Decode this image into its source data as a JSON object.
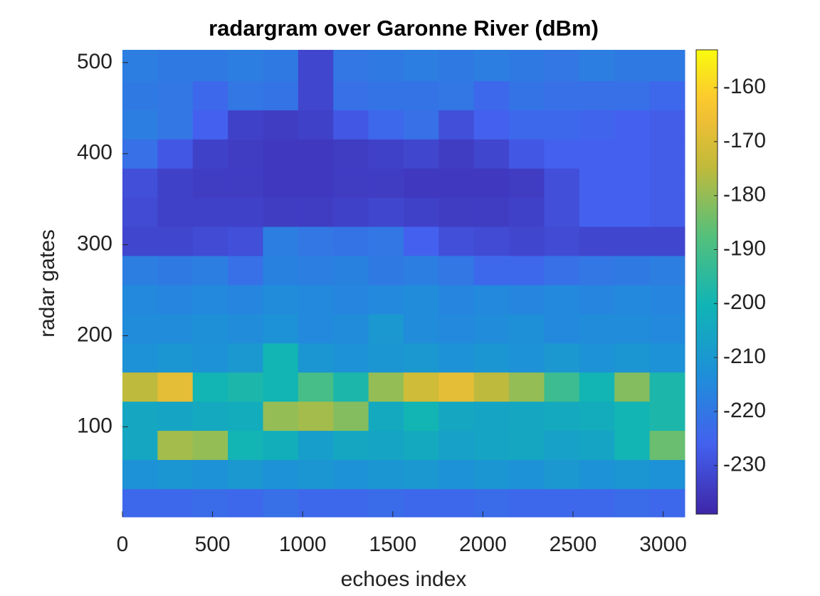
{
  "chart_data": {
    "type": "heatmap",
    "title": "radargram over Garonne River (dBm)",
    "x_label": "echoes index",
    "y_label": "radar gates",
    "xlim": [
      0,
      3120
    ],
    "xticks": [
      0,
      500,
      1000,
      1500,
      2000,
      2500,
      3000
    ],
    "ylim": [
      1,
      514
    ],
    "yticks": [
      100,
      200,
      300,
      400,
      500
    ],
    "clim": [
      -239,
      -153
    ],
    "cticks": [
      -160,
      -170,
      -180,
      -190,
      -200,
      -210,
      -220,
      -230
    ],
    "colormap": "parula",
    "x": [
      97.5,
      292.5,
      487.5,
      682.5,
      877.5,
      1072.5,
      1267.5,
      1462.5,
      1657.5,
      1852.5,
      2047.5,
      2242.5,
      2437.5,
      2632.5,
      2827.5,
      3022.5
    ],
    "y": [
      16,
      48,
      80,
      112,
      144,
      176,
      208,
      240,
      272,
      304,
      336,
      368,
      400,
      432,
      464,
      496
    ],
    "z": [
      [
        -224,
        -224,
        -223,
        -224,
        -222,
        -224,
        -224,
        -223,
        -224,
        -224,
        -223,
        -224,
        -224,
        -224,
        -223,
        -224
      ],
      [
        -212,
        -211,
        -212,
        -210,
        -212,
        -211,
        -212,
        -211,
        -210,
        -212,
        -211,
        -212,
        -210,
        -212,
        -211,
        -212
      ],
      [
        -205,
        -178,
        -180,
        -200,
        -202,
        -208,
        -205,
        -206,
        -204,
        -207,
        -206,
        -205,
        -207,
        -206,
        -200,
        -185
      ],
      [
        -205,
        -206,
        -204,
        -203,
        -180,
        -178,
        -182,
        -204,
        -200,
        -205,
        -206,
        -205,
        -204,
        -203,
        -200,
        -198
      ],
      [
        -175,
        -168,
        -200,
        -198,
        -200,
        -190,
        -198,
        -180,
        -172,
        -168,
        -175,
        -180,
        -192,
        -200,
        -182,
        -198
      ],
      [
        -212,
        -211,
        -212,
        -210,
        -200,
        -211,
        -212,
        -211,
        -210,
        -212,
        -211,
        -212,
        -210,
        -212,
        -211,
        -212
      ],
      [
        -214,
        -214,
        -213,
        -214,
        -212,
        -215,
        -214,
        -210,
        -214,
        -215,
        -214,
        -213,
        -215,
        -214,
        -214,
        -215
      ],
      [
        -215,
        -216,
        -215,
        -216,
        -214,
        -215,
        -216,
        -215,
        -214,
        -216,
        -215,
        -216,
        -215,
        -216,
        -215,
        -216
      ],
      [
        -218,
        -219,
        -218,
        -222,
        -217,
        -218,
        -217,
        -219,
        -218,
        -220,
        -224,
        -224,
        -222,
        -220,
        -219,
        -218
      ],
      [
        -232,
        -232,
        -231,
        -230,
        -218,
        -220,
        -221,
        -220,
        -226,
        -230,
        -231,
        -232,
        -231,
        -232,
        -232,
        -232
      ],
      [
        -231,
        -233,
        -233,
        -233,
        -234,
        -234,
        -233,
        -232,
        -233,
        -234,
        -234,
        -233,
        -230,
        -226,
        -226,
        -227
      ],
      [
        -230,
        -233,
        -234,
        -234,
        -235,
        -235,
        -234,
        -234,
        -235,
        -235,
        -235,
        -234,
        -230,
        -226,
        -226,
        -227
      ],
      [
        -222,
        -228,
        -233,
        -234,
        -235,
        -235,
        -234,
        -233,
        -232,
        -234,
        -232,
        -228,
        -226,
        -226,
        -226,
        -227
      ],
      [
        -218,
        -220,
        -226,
        -233,
        -234,
        -233,
        -228,
        -224,
        -222,
        -230,
        -226,
        -224,
        -224,
        -225,
        -226,
        -227
      ],
      [
        -219,
        -220,
        -224,
        -220,
        -221,
        -232,
        -222,
        -221,
        -221,
        -220,
        -224,
        -221,
        -222,
        -222,
        -222,
        -224
      ],
      [
        -218,
        -219,
        -219,
        -218,
        -219,
        -232,
        -220,
        -219,
        -218,
        -219,
        -218,
        -219,
        -220,
        -218,
        -219,
        -219
      ]
    ]
  }
}
